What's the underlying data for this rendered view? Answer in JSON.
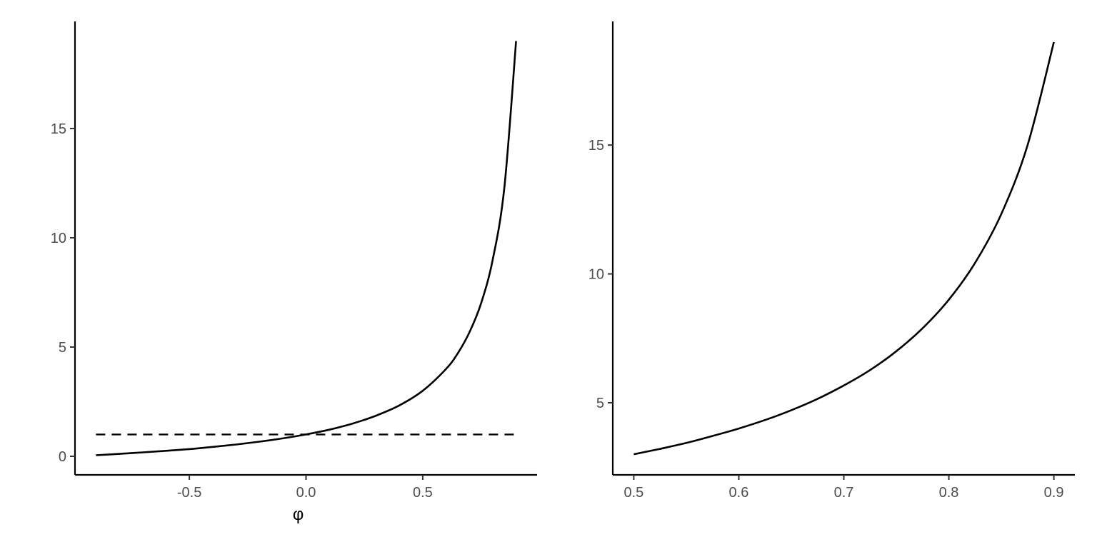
{
  "chart_data": [
    {
      "type": "line",
      "title": "",
      "xlabel": "φ",
      "ylabel": "",
      "xlim": [
        -0.99,
        0.99
      ],
      "ylim": [
        -0.85,
        19.9
      ],
      "xticks": [
        "-0.5",
        "0.0",
        "0.5"
      ],
      "xtick_values": [
        -0.5,
        0.0,
        0.5
      ],
      "yticks": [
        "0",
        "5",
        "10",
        "15"
      ],
      "ytick_values": [
        0,
        5,
        10,
        15
      ],
      "grid": false,
      "legend": "none",
      "series": [
        {
          "style": "solid",
          "x": [
            -0.9,
            -0.8,
            -0.7,
            -0.6,
            -0.5,
            -0.4,
            -0.3,
            -0.2,
            -0.1,
            0.0,
            0.1,
            0.2,
            0.3,
            0.4,
            0.5,
            0.6,
            0.65,
            0.7,
            0.75,
            0.8,
            0.85,
            0.9
          ],
          "y": [
            0.05,
            0.11,
            0.18,
            0.25,
            0.33,
            0.43,
            0.54,
            0.67,
            0.82,
            1.0,
            1.22,
            1.5,
            1.86,
            2.33,
            3.0,
            4.0,
            4.71,
            5.67,
            7.0,
            9.0,
            12.33,
            19.0
          ]
        },
        {
          "style": "dashed",
          "x": [
            -0.9,
            0.9
          ],
          "y": [
            1,
            1
          ]
        }
      ]
    },
    {
      "type": "line",
      "title": "",
      "xlabel": "",
      "ylabel": "",
      "xlim": [
        0.48,
        0.92
      ],
      "ylim": [
        2.2,
        19.8
      ],
      "xticks": [
        "0.5",
        "0.6",
        "0.7",
        "0.8",
        "0.9"
      ],
      "xtick_values": [
        0.5,
        0.6,
        0.7,
        0.8,
        0.9
      ],
      "yticks": [
        "5",
        "10",
        "15"
      ],
      "ytick_values": [
        5,
        10,
        15
      ],
      "grid": false,
      "legend": "none",
      "series": [
        {
          "style": "solid",
          "x": [
            0.5,
            0.525,
            0.55,
            0.575,
            0.6,
            0.625,
            0.65,
            0.675,
            0.7,
            0.725,
            0.75,
            0.775,
            0.8,
            0.825,
            0.85,
            0.875,
            0.9
          ],
          "y": [
            3.0,
            3.21,
            3.44,
            3.71,
            4.0,
            4.33,
            4.71,
            5.15,
            5.67,
            6.27,
            7.0,
            7.89,
            9.0,
            10.43,
            12.33,
            15.0,
            19.0
          ]
        }
      ]
    }
  ]
}
